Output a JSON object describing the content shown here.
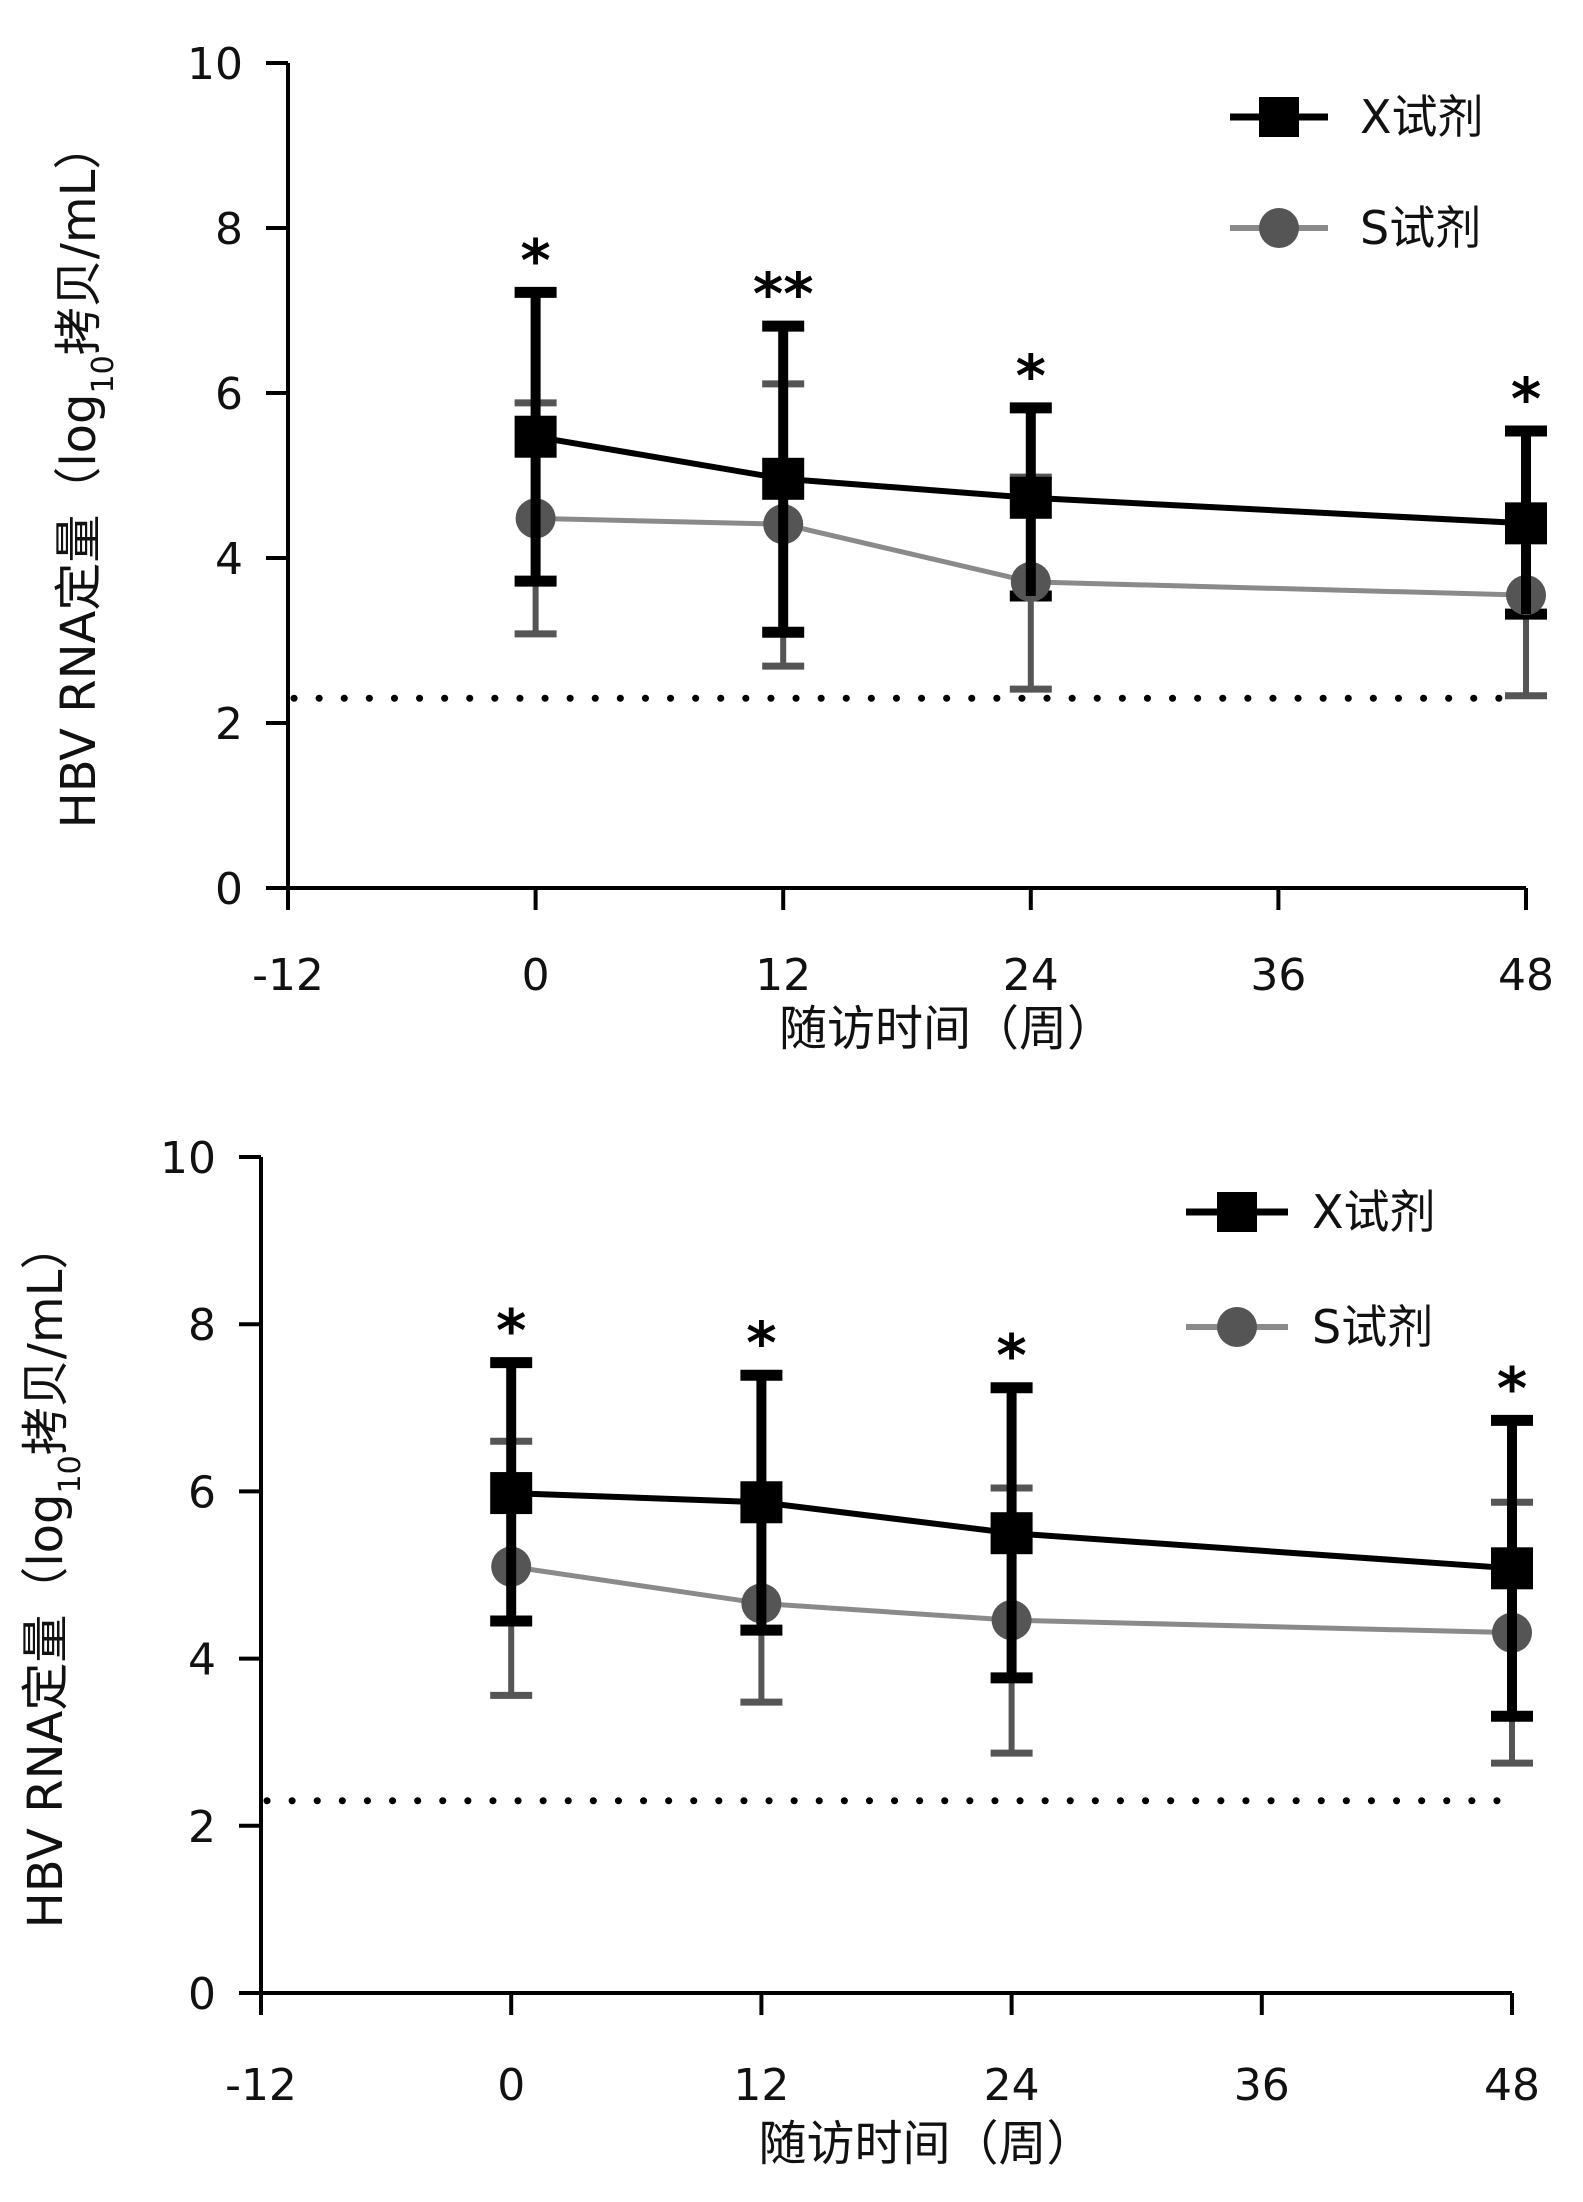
{
  "chart_data": [
    {
      "type": "line",
      "panel": "top",
      "title": "",
      "xlabel": "随访时间（周）",
      "ylabel": "HBV RNA定量（log10拷贝/mL）",
      "ylabel_parts": {
        "main": "HBV RNA定量（log",
        "sub": "10",
        "tail": "拷贝/mL）"
      },
      "xlim": [
        -12,
        48
      ],
      "ylim": [
        0,
        10
      ],
      "xticks": [
        -12,
        0,
        12,
        24,
        36,
        48
      ],
      "yticks": [
        0,
        2,
        4,
        6,
        8,
        10
      ],
      "grid": false,
      "legend_position": "top-right",
      "reference_line": {
        "y": 2.3,
        "style": "dotted",
        "label": ""
      },
      "x": [
        0,
        12,
        24,
        48
      ],
      "series": [
        {
          "name": "X试剂",
          "marker": "square",
          "color": "#000000",
          "line_color": "#000000",
          "values": [
            5.47,
            4.96,
            4.73,
            4.42
          ],
          "error_upper": [
            7.22,
            6.81,
            5.82,
            5.54
          ],
          "error_lower": [
            3.72,
            3.1,
            3.54,
            3.32
          ]
        },
        {
          "name": "S试剂",
          "marker": "circle",
          "color": "#555555",
          "line_color": "#8a8a8a",
          "values": [
            4.48,
            4.41,
            3.71,
            3.55
          ],
          "error_upper": [
            5.88,
            6.11,
            4.98,
            4.45
          ],
          "error_lower": [
            3.08,
            2.69,
            2.41,
            2.33
          ]
        }
      ],
      "annotations": [
        "*",
        "**",
        "*",
        "*"
      ]
    },
    {
      "type": "line",
      "panel": "bottom",
      "title": "",
      "xlabel": "随访时间（周）",
      "ylabel": "HBV RNA定量（log10拷贝/mL）",
      "ylabel_parts": {
        "main": "HBV RNA定量（log",
        "sub": "10",
        "tail": "拷贝/mL）"
      },
      "xlim": [
        -12,
        48
      ],
      "ylim": [
        0,
        10
      ],
      "xticks": [
        -12,
        0,
        12,
        24,
        36,
        48
      ],
      "yticks": [
        0,
        2,
        4,
        6,
        8,
        10
      ],
      "grid": false,
      "legend_position": "top-right",
      "reference_line": {
        "y": 2.3,
        "style": "dotted",
        "label": ""
      },
      "x": [
        0,
        12,
        24,
        48
      ],
      "series": [
        {
          "name": "X试剂",
          "marker": "square",
          "color": "#000000",
          "line_color": "#000000",
          "values": [
            5.98,
            5.87,
            5.5,
            5.08
          ],
          "error_upper": [
            7.54,
            7.39,
            7.24,
            6.85
          ],
          "error_lower": [
            4.45,
            4.34,
            3.77,
            3.31
          ]
        },
        {
          "name": "S试剂",
          "marker": "circle",
          "color": "#555555",
          "line_color": "#8a8a8a",
          "values": [
            5.1,
            4.66,
            4.46,
            4.31
          ],
          "error_upper": [
            6.6,
            5.9,
            6.04,
            5.87
          ],
          "error_lower": [
            3.56,
            3.48,
            2.87,
            2.75
          ]
        }
      ],
      "annotations": [
        "*",
        "*",
        "*",
        "*"
      ]
    }
  ]
}
